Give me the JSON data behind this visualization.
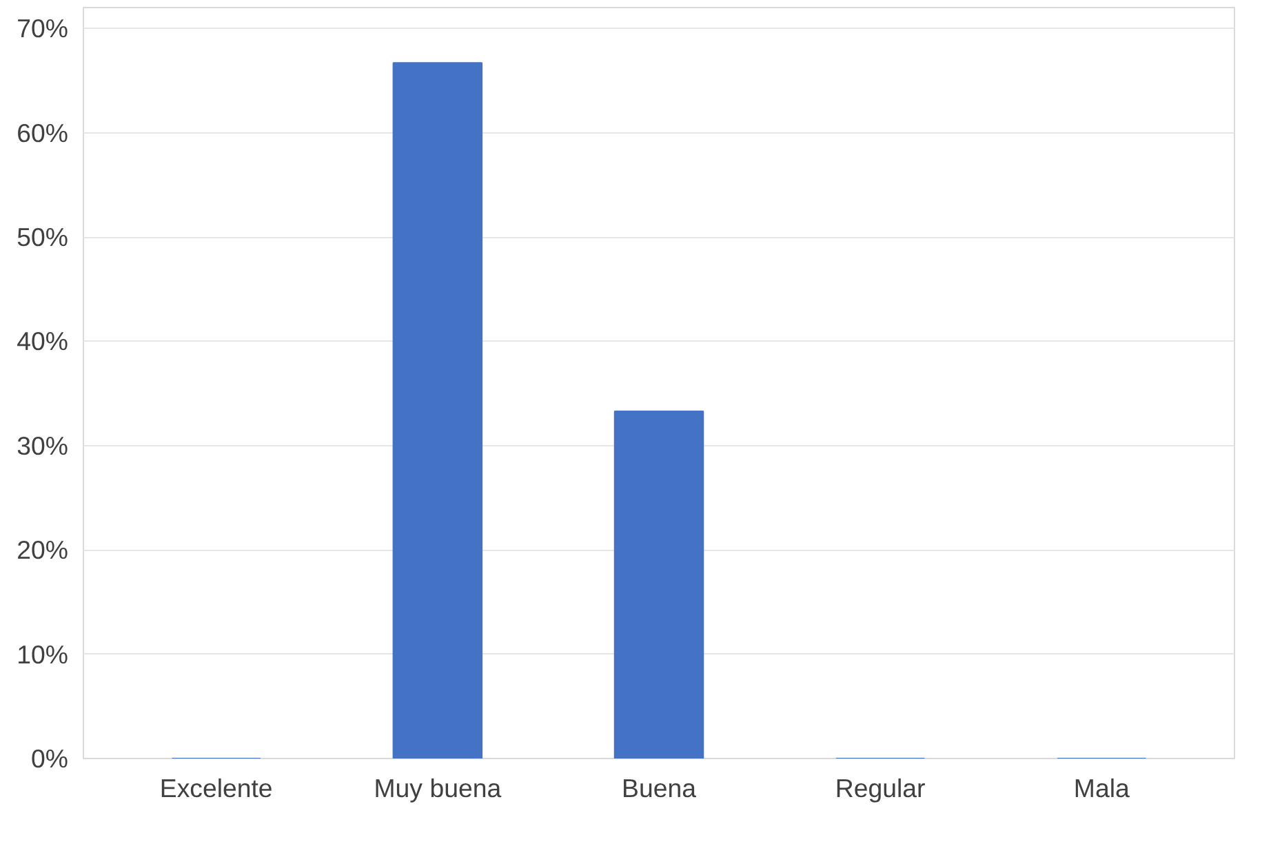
{
  "chart_data": {
    "type": "bar",
    "categories": [
      "Excelente",
      "Muy buena",
      "Buena",
      "Regular",
      "Mala"
    ],
    "values": [
      0,
      66.7,
      33.3,
      0,
      0
    ],
    "color": "#4472c4",
    "ylim": [
      0,
      72
    ],
    "yticks": [
      {
        "value": 0,
        "label": "0%"
      },
      {
        "value": 10,
        "label": "10%"
      },
      {
        "value": 20,
        "label": "20%"
      },
      {
        "value": 30,
        "label": "30%"
      },
      {
        "value": 40,
        "label": "40%"
      },
      {
        "value": 50,
        "label": "50%"
      },
      {
        "value": 60,
        "label": "60%"
      },
      {
        "value": 70,
        "label": "70%"
      }
    ],
    "grid": "y"
  }
}
